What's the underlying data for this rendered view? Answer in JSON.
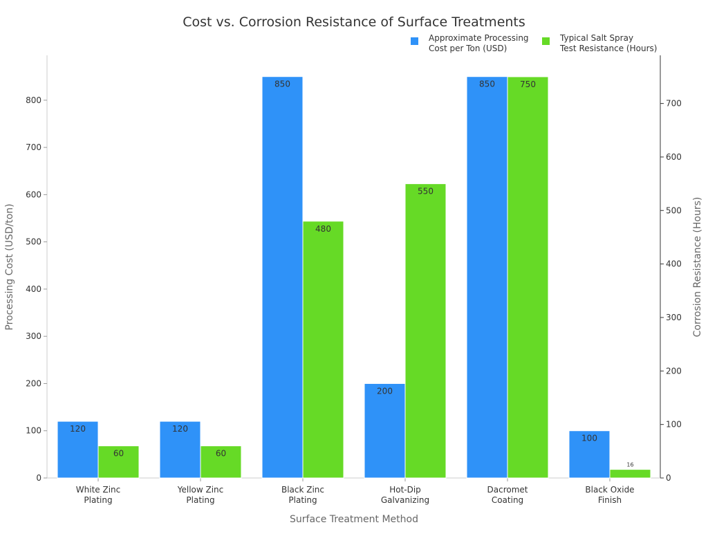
{
  "chart_data": {
    "type": "bar",
    "title": "Cost vs. Corrosion Resistance of Surface Treatments",
    "xlabel": "Surface Treatment Method",
    "ylabel": "Processing Cost (USD/ton)",
    "y2label": "Corrosion Resistance (Hours)",
    "categories": [
      [
        "White Zinc",
        "Plating"
      ],
      [
        "Yellow Zinc",
        "Plating"
      ],
      [
        "Black Zinc",
        "Plating"
      ],
      [
        "Hot-Dip",
        "Galvanizing"
      ],
      [
        "Dacromet",
        "Coating"
      ],
      [
        "Black Oxide",
        "Finish"
      ]
    ],
    "series": [
      {
        "name": [
          "Approximate Processing",
          "Cost per Ton (USD)"
        ],
        "axis": "left",
        "color": "#2f92f8",
        "values": [
          120,
          120,
          850,
          200,
          850,
          100
        ]
      },
      {
        "name": [
          "Typical Salt Spray",
          "Test Resistance (Hours)"
        ],
        "axis": "right",
        "color": "#66da26",
        "values": [
          60,
          60,
          480,
          550,
          750,
          16
        ]
      }
    ],
    "ylim": [
      0,
      895
    ],
    "y2lim": [
      0,
      790
    ],
    "yticks": [
      0,
      100,
      200,
      300,
      400,
      500,
      600,
      700,
      800
    ],
    "y2ticks": [
      0,
      100,
      200,
      300,
      400,
      500,
      600,
      700
    ],
    "grid": false,
    "legend": "top-right"
  }
}
